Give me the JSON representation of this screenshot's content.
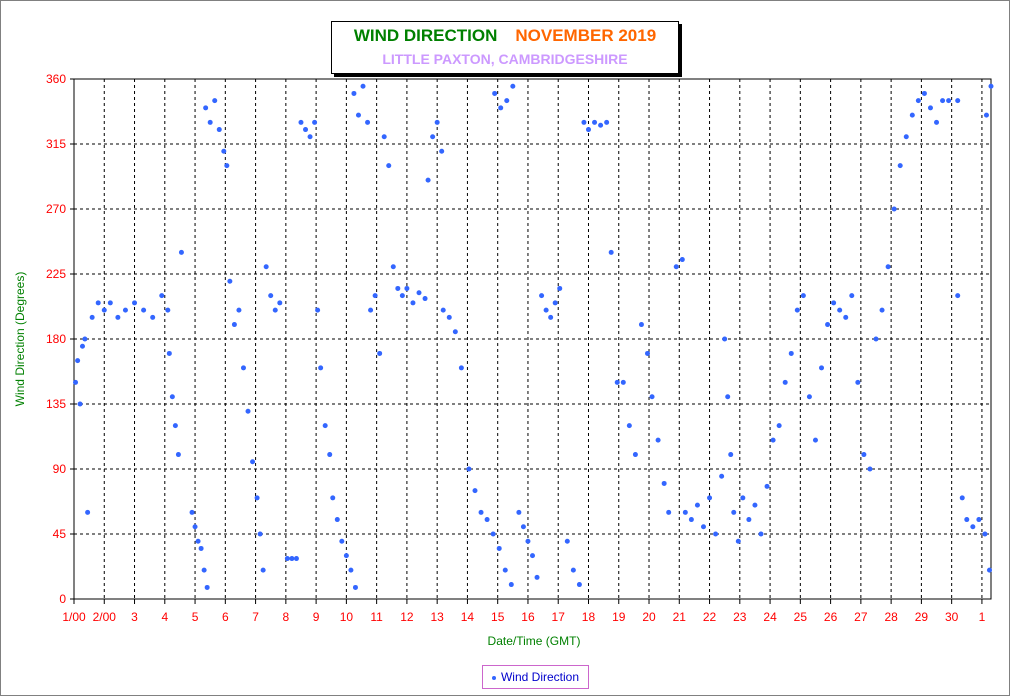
{
  "header": {
    "title_left": "WIND DIRECTION",
    "title_right": "NOVEMBER 2019",
    "subtitle": "LITTLE PAXTON, CAMBRIDGESHIRE"
  },
  "colors": {
    "points": "#3366ff",
    "title_left": "#008000",
    "title_right": "#ff6600",
    "subtitle": "#cc99ff",
    "ticks": "#ff0000",
    "axis_titles": "#008000"
  },
  "legend": {
    "label": "Wind Direction",
    "placement": "bottom-center"
  },
  "chart_data": {
    "type": "scatter",
    "title": "WIND DIRECTION   NOVEMBER 2019",
    "subtitle": "LITTLE PAXTON, CAMBRIDGESHIRE",
    "xlabel": "Date/Time (GMT)",
    "ylabel": "Wind Direction (Degrees)",
    "ylim": [
      0,
      360
    ],
    "xlim": [
      1,
      31.3
    ],
    "x_unit": "day of November 2019 (GMT)",
    "yticks": [
      0,
      45,
      90,
      135,
      180,
      225,
      270,
      315,
      360
    ],
    "xticks": [
      {
        "x": 1,
        "label": "1/00"
      },
      {
        "x": 2,
        "label": "2/00"
      },
      {
        "x": 3,
        "label": "3"
      },
      {
        "x": 4,
        "label": "4"
      },
      {
        "x": 5,
        "label": "5"
      },
      {
        "x": 6,
        "label": "6"
      },
      {
        "x": 7,
        "label": "7"
      },
      {
        "x": 8,
        "label": "8"
      },
      {
        "x": 9,
        "label": "9"
      },
      {
        "x": 10,
        "label": "10"
      },
      {
        "x": 11,
        "label": "11"
      },
      {
        "x": 12,
        "label": "12"
      },
      {
        "x": 13,
        "label": "13"
      },
      {
        "x": 14,
        "label": "14"
      },
      {
        "x": 15,
        "label": "15"
      },
      {
        "x": 16,
        "label": "16"
      },
      {
        "x": 17,
        "label": "17"
      },
      {
        "x": 18,
        "label": "18"
      },
      {
        "x": 19,
        "label": "19"
      },
      {
        "x": 20,
        "label": "20"
      },
      {
        "x": 21,
        "label": "21"
      },
      {
        "x": 22,
        "label": "22"
      },
      {
        "x": 23,
        "label": "23"
      },
      {
        "x": 24,
        "label": "24"
      },
      {
        "x": 25,
        "label": "25"
      },
      {
        "x": 26,
        "label": "26"
      },
      {
        "x": 27,
        "label": "27"
      },
      {
        "x": 28,
        "label": "28"
      },
      {
        "x": 29,
        "label": "29"
      },
      {
        "x": 30,
        "label": "30"
      },
      {
        "x": 31,
        "label": "1"
      }
    ],
    "grid": true,
    "series": [
      {
        "name": "Wind Direction",
        "points": [
          [
            1.05,
            150
          ],
          [
            1.12,
            165
          ],
          [
            1.2,
            135
          ],
          [
            1.28,
            175
          ],
          [
            1.36,
            180
          ],
          [
            1.45,
            60
          ],
          [
            1.6,
            195
          ],
          [
            1.8,
            205
          ],
          [
            2.0,
            200
          ],
          [
            2.2,
            205
          ],
          [
            2.45,
            195
          ],
          [
            2.7,
            200
          ],
          [
            3.0,
            205
          ],
          [
            3.3,
            200
          ],
          [
            3.6,
            195
          ],
          [
            3.9,
            210
          ],
          [
            4.1,
            200
          ],
          [
            4.15,
            170
          ],
          [
            4.25,
            140
          ],
          [
            4.35,
            120
          ],
          [
            4.45,
            100
          ],
          [
            4.55,
            240
          ],
          [
            4.9,
            60
          ],
          [
            5.0,
            50
          ],
          [
            5.1,
            40
          ],
          [
            5.2,
            35
          ],
          [
            5.3,
            20
          ],
          [
            5.4,
            8
          ],
          [
            5.35,
            340
          ],
          [
            5.5,
            330
          ],
          [
            5.65,
            345
          ],
          [
            5.8,
            325
          ],
          [
            5.95,
            310
          ],
          [
            6.05,
            300
          ],
          [
            6.15,
            220
          ],
          [
            6.3,
            190
          ],
          [
            6.45,
            200
          ],
          [
            6.6,
            160
          ],
          [
            6.75,
            130
          ],
          [
            6.9,
            95
          ],
          [
            7.05,
            70
          ],
          [
            7.15,
            45
          ],
          [
            7.25,
            20
          ],
          [
            7.35,
            230
          ],
          [
            7.5,
            210
          ],
          [
            7.65,
            200
          ],
          [
            7.8,
            205
          ],
          [
            8.05,
            28
          ],
          [
            8.2,
            28
          ],
          [
            8.35,
            28
          ],
          [
            8.5,
            330
          ],
          [
            8.65,
            325
          ],
          [
            8.8,
            320
          ],
          [
            8.95,
            330
          ],
          [
            9.05,
            200
          ],
          [
            9.15,
            160
          ],
          [
            9.3,
            120
          ],
          [
            9.45,
            100
          ],
          [
            9.55,
            70
          ],
          [
            9.7,
            55
          ],
          [
            9.85,
            40
          ],
          [
            10.0,
            30
          ],
          [
            10.15,
            20
          ],
          [
            10.3,
            8
          ],
          [
            10.25,
            350
          ],
          [
            10.4,
            335
          ],
          [
            10.55,
            355
          ],
          [
            10.7,
            330
          ],
          [
            10.8,
            200
          ],
          [
            10.95,
            210
          ],
          [
            11.1,
            170
          ],
          [
            11.25,
            320
          ],
          [
            11.4,
            300
          ],
          [
            11.55,
            230
          ],
          [
            11.7,
            215
          ],
          [
            11.85,
            210
          ],
          [
            12.0,
            215
          ],
          [
            12.2,
            205
          ],
          [
            12.4,
            212
          ],
          [
            12.6,
            208
          ],
          [
            12.7,
            290
          ],
          [
            12.85,
            320
          ],
          [
            13.0,
            330
          ],
          [
            13.15,
            310
          ],
          [
            13.2,
            200
          ],
          [
            13.4,
            195
          ],
          [
            13.6,
            185
          ],
          [
            13.8,
            160
          ],
          [
            14.05,
            90
          ],
          [
            14.25,
            75
          ],
          [
            14.45,
            60
          ],
          [
            14.65,
            55
          ],
          [
            14.85,
            45
          ],
          [
            15.05,
            35
          ],
          [
            15.25,
            20
          ],
          [
            15.45,
            10
          ],
          [
            14.9,
            350
          ],
          [
            15.1,
            340
          ],
          [
            15.3,
            345
          ],
          [
            15.5,
            355
          ],
          [
            15.7,
            60
          ],
          [
            15.85,
            50
          ],
          [
            16.0,
            40
          ],
          [
            16.15,
            30
          ],
          [
            16.3,
            15
          ],
          [
            16.45,
            210
          ],
          [
            16.6,
            200
          ],
          [
            16.75,
            195
          ],
          [
            16.9,
            205
          ],
          [
            17.05,
            215
          ],
          [
            17.3,
            40
          ],
          [
            17.5,
            20
          ],
          [
            17.7,
            10
          ],
          [
            17.85,
            330
          ],
          [
            18.0,
            325
          ],
          [
            18.2,
            330
          ],
          [
            18.4,
            328
          ],
          [
            18.6,
            330
          ],
          [
            18.75,
            240
          ],
          [
            18.95,
            150
          ],
          [
            19.15,
            150
          ],
          [
            19.35,
            120
          ],
          [
            19.55,
            100
          ],
          [
            19.75,
            190
          ],
          [
            19.95,
            170
          ],
          [
            20.1,
            140
          ],
          [
            20.3,
            110
          ],
          [
            20.5,
            80
          ],
          [
            20.65,
            60
          ],
          [
            20.9,
            230
          ],
          [
            21.1,
            235
          ],
          [
            21.2,
            60
          ],
          [
            21.4,
            55
          ],
          [
            21.6,
            65
          ],
          [
            21.8,
            50
          ],
          [
            22.0,
            70
          ],
          [
            22.2,
            45
          ],
          [
            22.4,
            85
          ],
          [
            22.5,
            180
          ],
          [
            22.6,
            140
          ],
          [
            22.7,
            100
          ],
          [
            22.8,
            60
          ],
          [
            22.95,
            40
          ],
          [
            23.1,
            70
          ],
          [
            23.3,
            55
          ],
          [
            23.5,
            65
          ],
          [
            23.7,
            45
          ],
          [
            23.9,
            78
          ],
          [
            24.1,
            110
          ],
          [
            24.3,
            120
          ],
          [
            24.5,
            150
          ],
          [
            24.7,
            170
          ],
          [
            24.9,
            200
          ],
          [
            25.1,
            210
          ],
          [
            25.3,
            140
          ],
          [
            25.5,
            110
          ],
          [
            25.7,
            160
          ],
          [
            25.9,
            190
          ],
          [
            26.1,
            205
          ],
          [
            26.3,
            200
          ],
          [
            26.5,
            195
          ],
          [
            26.7,
            210
          ],
          [
            26.9,
            150
          ],
          [
            27.1,
            100
          ],
          [
            27.3,
            90
          ],
          [
            27.5,
            180
          ],
          [
            27.7,
            200
          ],
          [
            27.9,
            230
          ],
          [
            28.1,
            270
          ],
          [
            28.3,
            300
          ],
          [
            28.5,
            320
          ],
          [
            28.7,
            335
          ],
          [
            28.9,
            345
          ],
          [
            29.1,
            350
          ],
          [
            29.3,
            340
          ],
          [
            29.5,
            330
          ],
          [
            29.7,
            345
          ],
          [
            29.9,
            345
          ],
          [
            30.2,
            345
          ],
          [
            30.35,
            70
          ],
          [
            30.5,
            55
          ],
          [
            30.7,
            50
          ],
          [
            30.9,
            55
          ],
          [
            31.1,
            45
          ],
          [
            31.25,
            20
          ],
          [
            30.2,
            210
          ],
          [
            31.3,
            355
          ],
          [
            31.15,
            335
          ]
        ]
      }
    ]
  }
}
